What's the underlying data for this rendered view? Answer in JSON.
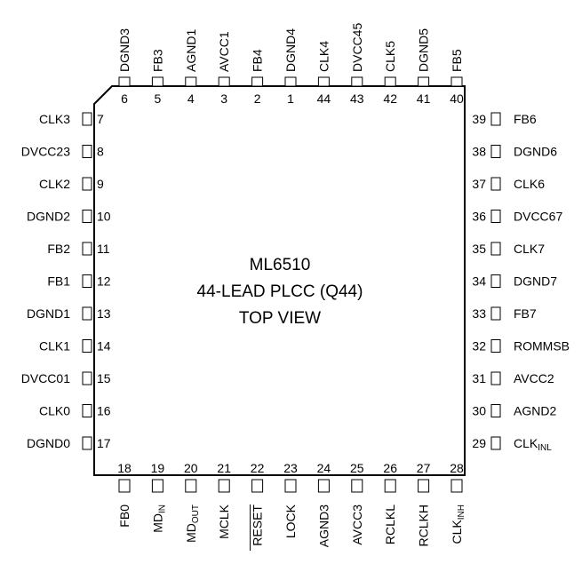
{
  "title_lines": [
    "ML6510",
    "44-LEAD PLCC (Q44)",
    "TOP VIEW"
  ],
  "pins_top": [
    {
      "num": "6",
      "label": "DGND3"
    },
    {
      "num": "5",
      "label": "FB3"
    },
    {
      "num": "4",
      "label": "AGND1"
    },
    {
      "num": "3",
      "label": "AVCC1"
    },
    {
      "num": "2",
      "label": "FB4"
    },
    {
      "num": "1",
      "label": "DGND4"
    },
    {
      "num": "44",
      "label": "CLK4"
    },
    {
      "num": "43",
      "label": "DVCC45"
    },
    {
      "num": "42",
      "label": "CLK5"
    },
    {
      "num": "41",
      "label": "DGND5"
    },
    {
      "num": "40",
      "label": "FB5"
    }
  ],
  "pins_left": [
    {
      "num": "7",
      "label": "CLK3"
    },
    {
      "num": "8",
      "label": "DVCC23"
    },
    {
      "num": "9",
      "label": "CLK2"
    },
    {
      "num": "10",
      "label": "DGND2"
    },
    {
      "num": "11",
      "label": "FB2"
    },
    {
      "num": "12",
      "label": "FB1"
    },
    {
      "num": "13",
      "label": "DGND1"
    },
    {
      "num": "14",
      "label": "CLK1"
    },
    {
      "num": "15",
      "label": "DVCC01"
    },
    {
      "num": "16",
      "label": "CLK0"
    },
    {
      "num": "17",
      "label": "DGND0"
    }
  ],
  "pins_right": [
    {
      "num": "39",
      "label": "FB6"
    },
    {
      "num": "38",
      "label": "DGND6"
    },
    {
      "num": "37",
      "label": "CLK6"
    },
    {
      "num": "36",
      "label": "DVCC67"
    },
    {
      "num": "35",
      "label": "CLK7"
    },
    {
      "num": "34",
      "label": "DGND7"
    },
    {
      "num": "33",
      "label": "FB7"
    },
    {
      "num": "32",
      "label": "ROMMSB"
    },
    {
      "num": "31",
      "label": "AVCC2"
    },
    {
      "num": "30",
      "label": "AGND2"
    },
    {
      "num": "29",
      "label": "CLK",
      "sub": "INL"
    }
  ],
  "pins_bottom": [
    {
      "num": "18",
      "label": "FB0"
    },
    {
      "num": "19",
      "label": "MD",
      "sub": "IN"
    },
    {
      "num": "20",
      "label": "MD",
      "sub": "OUT"
    },
    {
      "num": "21",
      "label": "MCLK"
    },
    {
      "num": "22",
      "label": "RESET",
      "overline": true
    },
    {
      "num": "23",
      "label": "LOCK"
    },
    {
      "num": "24",
      "label": "AGND3"
    },
    {
      "num": "25",
      "label": "AVCC3"
    },
    {
      "num": "26",
      "label": "RCLKL"
    },
    {
      "num": "27",
      "label": "RCLKH"
    },
    {
      "num": "28",
      "label": "CLK",
      "sub": "INH"
    }
  ]
}
